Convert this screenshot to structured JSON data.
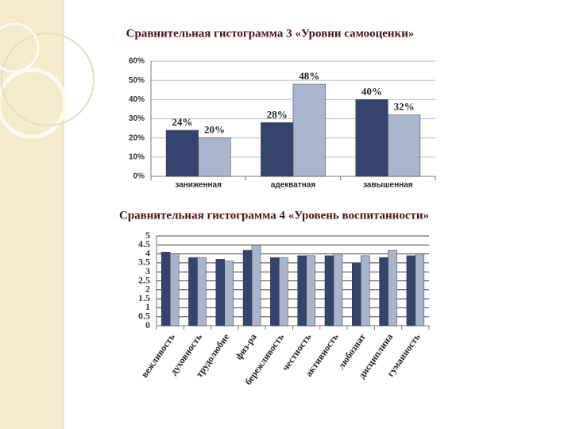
{
  "chart_data": [
    {
      "type": "bar",
      "title": "Сравнительная гистограмма 3 «Уровни самооценки»",
      "categories": [
        "заниженная",
        "адекватная",
        "завышенная"
      ],
      "series": [
        {
          "color": "#34446f",
          "values": [
            24,
            28,
            40
          ],
          "value_labels": [
            "24%",
            "28%",
            "40%"
          ]
        },
        {
          "color": "#a9b5cd",
          "values": [
            20,
            48,
            32
          ],
          "value_labels": [
            "20%",
            "48%",
            "32%"
          ]
        }
      ],
      "ylim": [
        0,
        60
      ],
      "yticks": [
        {
          "value": 0,
          "label": "0%"
        },
        {
          "value": 10,
          "label": "10%"
        },
        {
          "value": 20,
          "label": "20%"
        },
        {
          "value": 30,
          "label": "30%"
        },
        {
          "value": 40,
          "label": "40%"
        },
        {
          "value": 50,
          "label": "50%"
        },
        {
          "value": 60,
          "label": "60%"
        }
      ],
      "grid": true
    },
    {
      "type": "bar",
      "title": "Сравнительная гистограмма 4 «Уровень воспитанности»",
      "categories": [
        "вежливость",
        "духовность",
        "трудолюбие",
        "физ-ра",
        "бережливость",
        "честность",
        "активность",
        "любознат",
        "дисциплина",
        "гуманность"
      ],
      "series": [
        {
          "color": "#34446f",
          "values": [
            4.1,
            3.8,
            3.7,
            4.2,
            3.8,
            3.9,
            3.9,
            3.5,
            3.8,
            3.9
          ]
        },
        {
          "color": "#a9b5cd",
          "values": [
            4.0,
            3.8,
            3.6,
            4.5,
            3.8,
            3.9,
            4.0,
            3.9,
            4.2,
            4.0
          ]
        }
      ],
      "ylim": [
        0,
        5
      ],
      "yticks": [
        0,
        0.5,
        1,
        1.5,
        2,
        2.5,
        3,
        3.5,
        4,
        4.5,
        5
      ],
      "grid": true
    }
  ]
}
